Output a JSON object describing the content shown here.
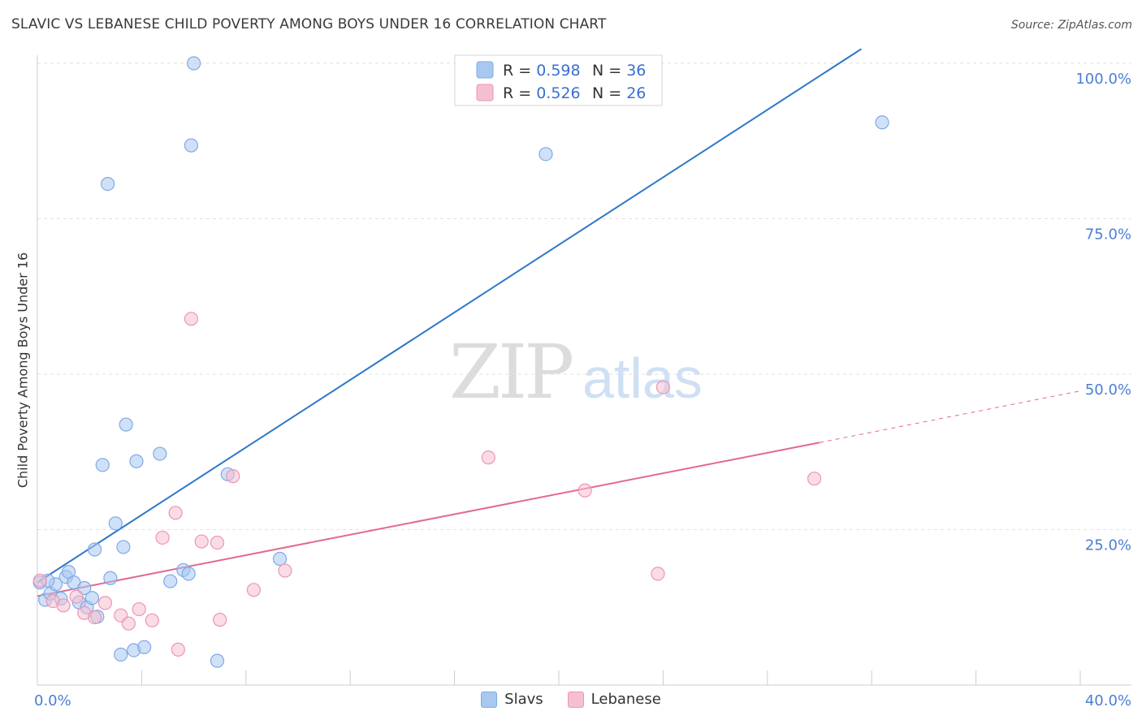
{
  "title": "SLAVIC VS LEBANESE CHILD POVERTY AMONG BOYS UNDER 16 CORRELATION CHART",
  "source": "Source: ZipAtlas.com",
  "watermark": {
    "zip": "ZIP",
    "atlas": "atlas"
  },
  "colors": {
    "slavs_fill": "#a9c8f0",
    "slavs_stroke": "#7eaae6",
    "slavs_line": "#2f77cc",
    "lebanese_fill": "#f6bfd0",
    "lebanese_stroke": "#ee94b2",
    "lebanese_line": "#e2698f",
    "tick": "#4a7fd4",
    "grid": "#e2e2e2"
  },
  "legend": {
    "rows": [
      {
        "r_label": "R = ",
        "r_value": "0.598",
        "n_label": "N = ",
        "n_value": "36"
      },
      {
        "r_label": "R = ",
        "r_value": "0.526",
        "n_label": "N = ",
        "n_value": "26"
      }
    ],
    "bottom": [
      "Slavs",
      "Lebanese"
    ]
  },
  "chart_data": {
    "type": "scatter",
    "title": "SLAVIC VS LEBANESE CHILD POVERTY AMONG BOYS UNDER 16 CORRELATION CHART",
    "xlabel": "",
    "ylabel": "Child Poverty Among Boys Under 16",
    "xlim": [
      0,
      40
    ],
    "ylim": [
      0,
      100
    ],
    "x_tick_labels": [
      "0.0%",
      "40.0%"
    ],
    "y_ticks": [
      25,
      50,
      75,
      100
    ],
    "y_tick_labels": [
      "25.0%",
      "50.0%",
      "75.0%",
      "100.0%"
    ],
    "grid": true,
    "legend_position": "top-center",
    "series": [
      {
        "name": "Slavs",
        "r": 0.598,
        "n": 36,
        "trend": {
          "x0": 0,
          "y0": 16.5,
          "x1": 31.6,
          "y1": 102.3,
          "dashed_to": null
        },
        "points": [
          [
            0.1,
            16.5
          ],
          [
            0.3,
            13.7
          ],
          [
            0.5,
            14.7
          ],
          [
            0.7,
            16.2
          ],
          [
            0.9,
            13.9
          ],
          [
            1.1,
            17.4
          ],
          [
            1.2,
            18.2
          ],
          [
            1.4,
            16.5
          ],
          [
            1.6,
            13.3
          ],
          [
            1.8,
            15.6
          ],
          [
            1.9,
            12.5
          ],
          [
            2.1,
            14.0
          ],
          [
            2.3,
            11.0
          ],
          [
            2.2,
            21.8
          ],
          [
            2.5,
            35.4
          ],
          [
            2.7,
            80.6
          ],
          [
            2.8,
            17.2
          ],
          [
            3.0,
            26.0
          ],
          [
            3.2,
            4.9
          ],
          [
            3.3,
            22.2
          ],
          [
            3.4,
            41.9
          ],
          [
            3.7,
            5.6
          ],
          [
            3.8,
            36.0
          ],
          [
            4.1,
            6.1
          ],
          [
            4.7,
            37.2
          ],
          [
            5.1,
            16.7
          ],
          [
            5.6,
            18.5
          ],
          [
            5.8,
            17.9
          ],
          [
            5.9,
            86.8
          ],
          [
            6.0,
            100.0
          ],
          [
            6.9,
            3.9
          ],
          [
            7.3,
            33.9
          ],
          [
            9.3,
            20.3
          ],
          [
            19.5,
            85.4
          ],
          [
            32.4,
            90.5
          ],
          [
            0.4,
            16.8
          ]
        ]
      },
      {
        "name": "Lebanese",
        "r": 0.526,
        "n": 26,
        "trend": {
          "x0": 0,
          "y0": 14.3,
          "x1": 30.0,
          "y1": 39.0,
          "dashed_to": [
            40,
            47.3
          ]
        },
        "points": [
          [
            0.1,
            16.8
          ],
          [
            0.6,
            13.5
          ],
          [
            1.0,
            12.8
          ],
          [
            1.5,
            14.2
          ],
          [
            1.8,
            11.6
          ],
          [
            2.2,
            10.9
          ],
          [
            2.6,
            13.2
          ],
          [
            3.2,
            11.2
          ],
          [
            3.5,
            9.9
          ],
          [
            3.9,
            12.2
          ],
          [
            4.4,
            10.4
          ],
          [
            4.8,
            23.7
          ],
          [
            5.3,
            27.7
          ],
          [
            5.4,
            5.7
          ],
          [
            5.9,
            58.9
          ],
          [
            6.3,
            23.1
          ],
          [
            6.9,
            22.9
          ],
          [
            7.0,
            10.5
          ],
          [
            7.5,
            33.6
          ],
          [
            8.3,
            15.3
          ],
          [
            9.5,
            18.4
          ],
          [
            17.3,
            36.6
          ],
          [
            21.0,
            31.3
          ],
          [
            23.8,
            17.9
          ],
          [
            24.0,
            47.9
          ],
          [
            29.8,
            33.2
          ]
        ]
      }
    ]
  }
}
